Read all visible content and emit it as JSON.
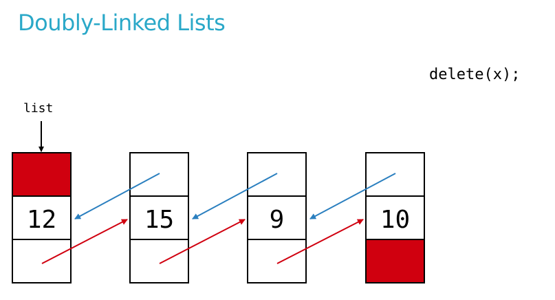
{
  "title": "Doubly-Linked Lists",
  "operation": "delete(x);",
  "head_pointer_label": "list",
  "colors": {
    "title": "#2aa8c8",
    "null_fill": "#d0000f",
    "prev_arrow": "#2a7fbf",
    "next_arrow": "#d0000f"
  },
  "nodes": [
    {
      "value": "12",
      "prev": "null",
      "next": "pointer"
    },
    {
      "value": "15",
      "prev": "pointer",
      "next": "pointer"
    },
    {
      "value": "9",
      "prev": "pointer",
      "next": "pointer"
    },
    {
      "value": "10",
      "prev": "pointer",
      "next": "null"
    }
  ]
}
